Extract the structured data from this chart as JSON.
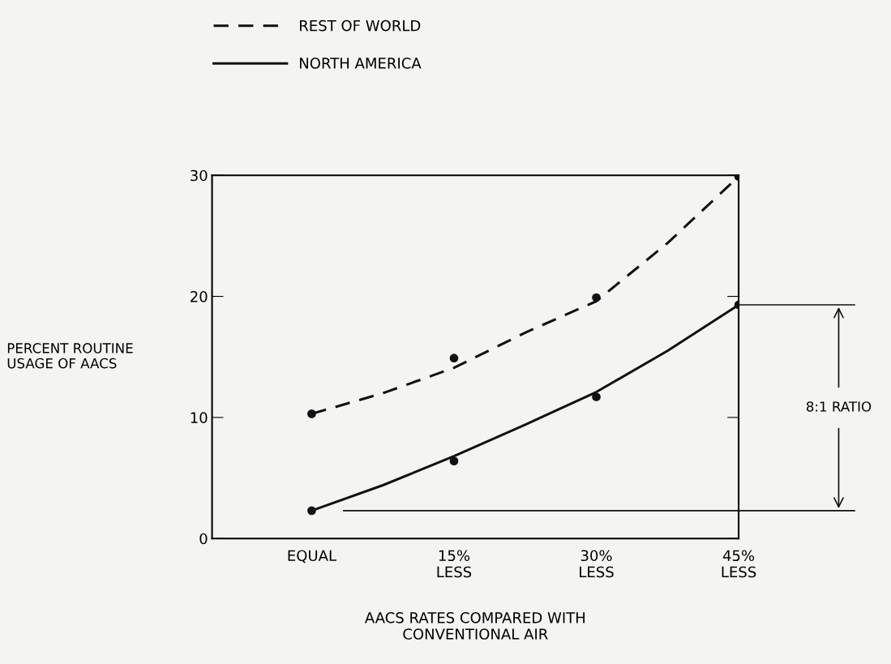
{
  "chart_data": {
    "type": "line",
    "xlabel": "AACS RATES COMPARED WITH\nCONVENTIONAL AIR",
    "ylabel": "PERCENT ROUTINE\nUSAGE OF AACS",
    "xlim": [
      -10.5,
      45
    ],
    "xticks": [
      {
        "value": 0,
        "label": "EQUAL"
      },
      {
        "value": 15,
        "label": "15%\nLESS"
      },
      {
        "value": 30,
        "label": "30%\nLESS"
      },
      {
        "value": 45,
        "label": "45%\nLESS"
      }
    ],
    "ylim": [
      0,
      30
    ],
    "yticks": [
      0,
      10,
      20,
      30
    ],
    "series": [
      {
        "name": "REST OF WORLD",
        "type": "line",
        "line_style": "dashed",
        "marker": "none",
        "color": "#111111",
        "x": [
          0,
          7.5,
          15,
          22.5,
          30,
          37.5,
          45
        ],
        "values": [
          10.3,
          12.0,
          14.1,
          17.0,
          19.6,
          24.4,
          29.9
        ]
      },
      {
        "name": "NORTH AMERICA",
        "type": "line",
        "line_style": "solid",
        "marker": "none",
        "color": "#111111",
        "x": [
          0,
          7.5,
          15,
          22.5,
          30,
          37.5,
          45
        ],
        "values": [
          2.3,
          4.4,
          6.8,
          9.4,
          12.1,
          15.5,
          19.3
        ]
      },
      {
        "type": "scatter",
        "marker": "circle",
        "color": "#111111",
        "x": [
          0,
          15,
          30,
          45
        ],
        "values": [
          10.3,
          14.9,
          19.9,
          29.9
        ]
      },
      {
        "type": "scatter",
        "marker": "circle",
        "color": "#111111",
        "x": [
          0,
          15,
          30,
          45
        ],
        "values": [
          2.3,
          6.4,
          11.7,
          19.3
        ]
      }
    ],
    "ref_lines": [
      {
        "axis": "y",
        "value": 2.3
      }
    ],
    "annotations": [
      "8:1 RATIO"
    ],
    "legend": "top left",
    "grid": false
  }
}
